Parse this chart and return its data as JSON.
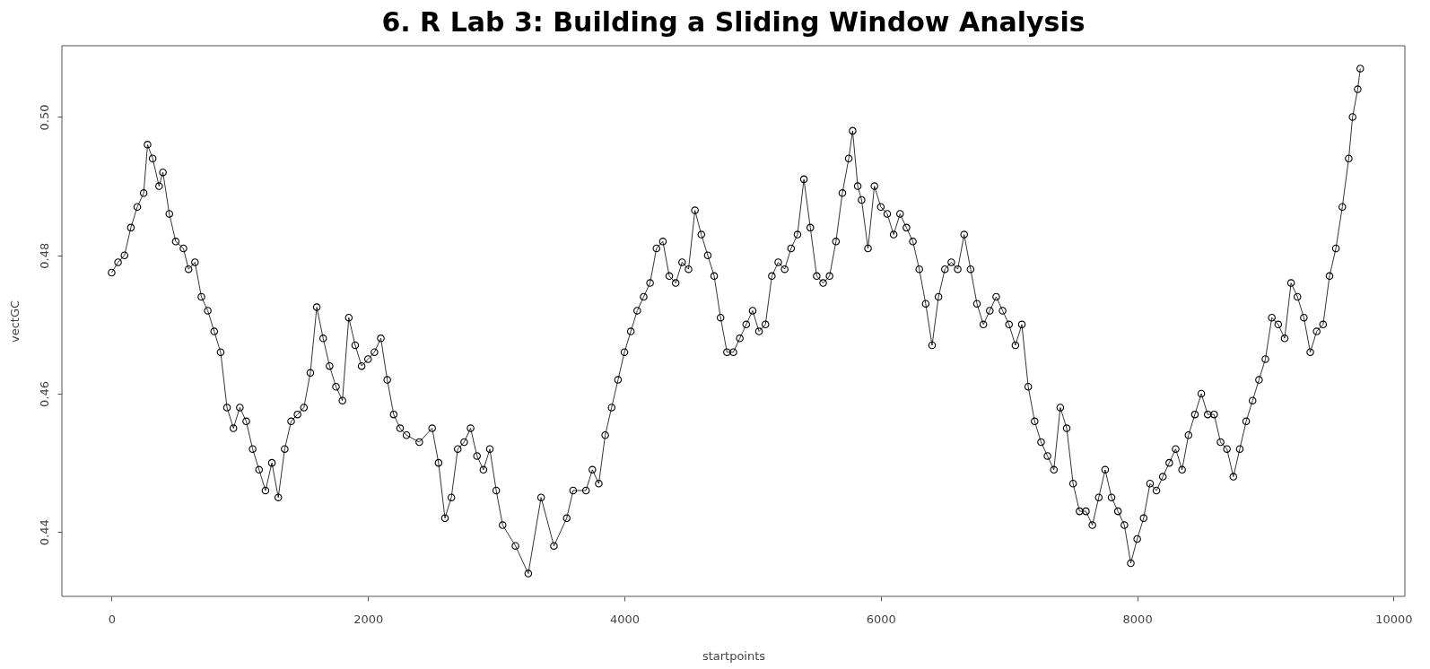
{
  "chart_data": {
    "type": "line",
    "title": "6. R Lab 3: Building a Sliding Window Analysis",
    "xlabel": "startpoints",
    "ylabel": "vectGC",
    "x": [
      0,
      50,
      100,
      150,
      200,
      250,
      280,
      320,
      370,
      400,
      450,
      500,
      560,
      600,
      650,
      700,
      750,
      800,
      850,
      900,
      950,
      1000,
      1050,
      1100,
      1150,
      1200,
      1250,
      1300,
      1350,
      1400,
      1450,
      1500,
      1550,
      1600,
      1650,
      1700,
      1750,
      1800,
      1850,
      1900,
      1950,
      2000,
      2050,
      2100,
      2150,
      2200,
      2250,
      2300,
      2400,
      2500,
      2550,
      2600,
      2650,
      2700,
      2750,
      2800,
      2850,
      2900,
      2950,
      3000,
      3050,
      3150,
      3250,
      3350,
      3450,
      3550,
      3600,
      3700,
      3750,
      3800,
      3850,
      3900,
      3950,
      4000,
      4050,
      4100,
      4150,
      4200,
      4250,
      4300,
      4350,
      4400,
      4450,
      4500,
      4550,
      4600,
      4650,
      4700,
      4750,
      4800,
      4850,
      4900,
      4950,
      5000,
      5050,
      5100,
      5150,
      5200,
      5250,
      5300,
      5350,
      5400,
      5450,
      5500,
      5550,
      5600,
      5650,
      5700,
      5750,
      5780,
      5820,
      5850,
      5900,
      5950,
      6000,
      6050,
      6100,
      6150,
      6200,
      6250,
      6300,
      6350,
      6400,
      6450,
      6500,
      6550,
      6600,
      6650,
      6700,
      6750,
      6800,
      6850,
      6900,
      6950,
      7000,
      7050,
      7100,
      7150,
      7200,
      7250,
      7300,
      7350,
      7400,
      7450,
      7500,
      7550,
      7600,
      7650,
      7700,
      7750,
      7800,
      7850,
      7900,
      7950,
      8000,
      8050,
      8100,
      8150,
      8200,
      8250,
      8300,
      8350,
      8400,
      8450,
      8500,
      8550,
      8600,
      8650,
      8700,
      8750,
      8800,
      8850,
      8900,
      8950,
      9000,
      9050,
      9100,
      9150,
      9200,
      9250,
      9300,
      9350,
      9400,
      9450,
      9500,
      9550,
      9600,
      9650,
      9680,
      9720,
      9740
    ],
    "series": [
      {
        "color": "#000000",
        "values": [
          0.4775,
          0.479,
          0.48,
          0.484,
          0.487,
          0.489,
          0.496,
          0.494,
          0.49,
          0.492,
          0.486,
          0.482,
          0.481,
          0.478,
          0.479,
          0.474,
          0.472,
          0.469,
          0.466,
          0.458,
          0.455,
          0.458,
          0.456,
          0.452,
          0.449,
          0.446,
          0.45,
          0.445,
          0.452,
          0.456,
          0.457,
          0.458,
          0.463,
          0.4725,
          0.468,
          0.464,
          0.461,
          0.459,
          0.471,
          0.467,
          0.464,
          0.465,
          0.466,
          0.468,
          0.462,
          0.457,
          0.455,
          0.454,
          0.453,
          0.455,
          0.45,
          0.442,
          0.445,
          0.452,
          0.453,
          0.455,
          0.451,
          0.449,
          0.452,
          0.446,
          0.441,
          0.438,
          0.434,
          0.445,
          0.438,
          0.442,
          0.446,
          0.446,
          0.449,
          0.447,
          0.454,
          0.458,
          0.462,
          0.466,
          0.469,
          0.472,
          0.474,
          0.476,
          0.481,
          0.482,
          0.477,
          0.476,
          0.479,
          0.478,
          0.4865,
          0.483,
          0.48,
          0.477,
          0.471,
          0.466,
          0.466,
          0.468,
          0.47,
          0.472,
          0.469,
          0.47,
          0.477,
          0.479,
          0.478,
          0.481,
          0.483,
          0.491,
          0.484,
          0.477,
          0.476,
          0.477,
          0.482,
          0.489,
          0.494,
          0.498,
          0.49,
          0.488,
          0.481,
          0.49,
          0.487,
          0.486,
          0.483,
          0.486,
          0.484,
          0.482,
          0.478,
          0.473,
          0.467,
          0.474,
          0.478,
          0.479,
          0.478,
          0.483,
          0.478,
          0.473,
          0.47,
          0.472,
          0.474,
          0.472,
          0.47,
          0.467,
          0.47,
          0.461,
          0.456,
          0.453,
          0.451,
          0.449,
          0.458,
          0.455,
          0.447,
          0.443,
          0.443,
          0.441,
          0.445,
          0.449,
          0.445,
          0.443,
          0.441,
          0.4355,
          0.439,
          0.442,
          0.447,
          0.446,
          0.448,
          0.45,
          0.452,
          0.449,
          0.454,
          0.457,
          0.46,
          0.457,
          0.457,
          0.453,
          0.452,
          0.448,
          0.452,
          0.456,
          0.459,
          0.462,
          0.465,
          0.471,
          0.47,
          0.468,
          0.476,
          0.474,
          0.471,
          0.466,
          0.469,
          0.47,
          0.477,
          0.481,
          0.487,
          0.494,
          0.5,
          0.504,
          0.507
        ]
      }
    ],
    "xlim": [
      -388,
      10088
    ],
    "xticks": [
      0,
      2000,
      4000,
      6000,
      8000,
      10000
    ],
    "ylim": [
      0.4307,
      0.5103
    ],
    "yticks": [
      0.44,
      0.46,
      0.48,
      {
        "value": 0.5,
        "label": "0.50"
      }
    ],
    "marker": "circle",
    "line_style": "solid",
    "grid": false,
    "legend": false
  }
}
